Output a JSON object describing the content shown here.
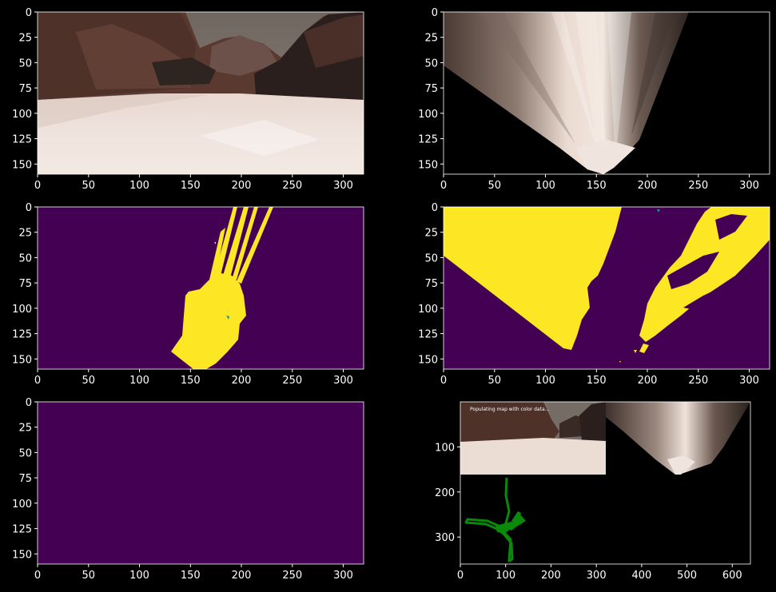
{
  "figure": {
    "background": "#000000",
    "tick_color": "#ffffff",
    "palette": {
      "sky": "#7e7570",
      "rock_dark": "#3a2a25",
      "rock_brown": "#5b3b30",
      "ground": "#e9d9d2",
      "ground_shadow": "#cdbbb3",
      "warp_light": "#e4d3c8",
      "warp_dark": "#4a3a33",
      "viridis_low": "#440154",
      "viridis_high": "#fde725",
      "viridis_mid": "#21918c",
      "rover_path": "#0a8a0a"
    }
  },
  "chart_data": [
    {
      "id": "camera-image",
      "type": "image",
      "content": "rover camera view",
      "xlim": [
        0,
        320
      ],
      "ylim": [
        160,
        0
      ],
      "xticks": [
        "0",
        "50",
        "100",
        "150",
        "200",
        "250",
        "300"
      ],
      "yticks": [
        "0",
        "25",
        "50",
        "75",
        "100",
        "125",
        "150"
      ]
    },
    {
      "id": "perspective-warped",
      "type": "image",
      "content": "perspective-transformed view",
      "xlim": [
        0,
        320
      ],
      "ylim": [
        160,
        0
      ],
      "xticks": [
        "0",
        "50",
        "100",
        "150",
        "200",
        "250",
        "300"
      ],
      "yticks": [
        "0",
        "25",
        "50",
        "75",
        "100",
        "125",
        "150"
      ]
    },
    {
      "id": "navigable-threshold",
      "type": "heatmap",
      "content": "binary threshold (navigable terrain)",
      "colormap": "viridis",
      "values": [
        0,
        1
      ],
      "xlim": [
        0,
        320
      ],
      "ylim": [
        160,
        0
      ],
      "xticks": [
        "0",
        "50",
        "100",
        "150",
        "200",
        "250",
        "300"
      ],
      "yticks": [
        "0",
        "25",
        "50",
        "75",
        "100",
        "125",
        "150"
      ]
    },
    {
      "id": "obstacle-threshold",
      "type": "heatmap",
      "content": "binary threshold (obstacles)",
      "colormap": "viridis",
      "values": [
        0,
        1
      ],
      "xlim": [
        0,
        320
      ],
      "ylim": [
        160,
        0
      ],
      "xticks": [
        "0",
        "50",
        "100",
        "150",
        "200",
        "250",
        "300"
      ],
      "yticks": [
        "0",
        "25",
        "50",
        "75",
        "100",
        "125",
        "150"
      ]
    },
    {
      "id": "rock-threshold",
      "type": "heatmap",
      "content": "binary threshold (rocks) — all zero",
      "colormap": "viridis",
      "values": [
        0
      ],
      "xlim": [
        0,
        320
      ],
      "ylim": [
        160,
        0
      ],
      "xticks": [
        "0",
        "50",
        "100",
        "150",
        "200",
        "250",
        "300"
      ],
      "yticks": [
        "0",
        "25",
        "50",
        "75",
        "100",
        "125",
        "150"
      ]
    },
    {
      "id": "output-mosaic",
      "type": "image",
      "content": "output frame mosaic with world map",
      "caption": "Populating map with color data...",
      "xlim": [
        0,
        640
      ],
      "ylim": [
        360,
        0
      ],
      "xticks": [
        "0",
        "100",
        "200",
        "300",
        "400",
        "500",
        "600"
      ],
      "yticks": [
        "100",
        "200",
        "300"
      ]
    }
  ]
}
